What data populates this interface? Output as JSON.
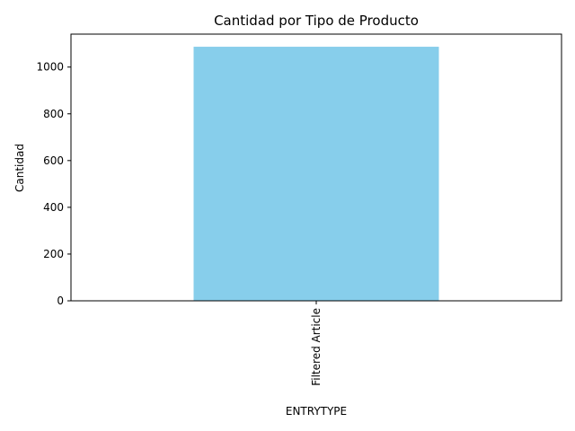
{
  "chart_data": {
    "type": "bar",
    "title": "Cantidad por Tipo de Producto",
    "xlabel": "ENTRYTYPE",
    "ylabel": "Cantidad",
    "categories": [
      "Filtered Article"
    ],
    "values": [
      1087
    ],
    "ylim": [
      0,
      1141
    ],
    "yticks": [
      0,
      200,
      400,
      600,
      800,
      1000
    ],
    "grid": false,
    "legend": "none",
    "colors": {
      "bar": "#87ceeb",
      "axis": "#000000"
    }
  }
}
